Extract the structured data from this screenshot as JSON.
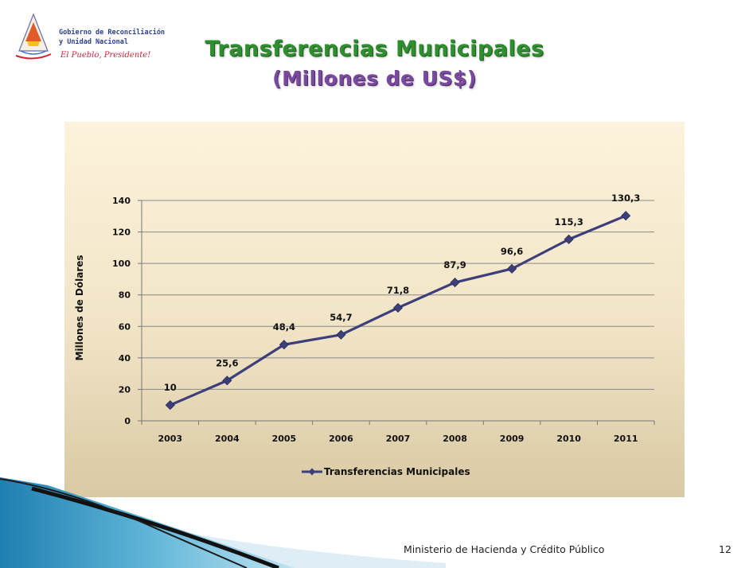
{
  "logo": {
    "line1": "Gobierno de Reconciliación",
    "line2": "y Unidad Nacional",
    "slogan": "El Pueblo, Presidente!"
  },
  "header": {
    "title": "Transferencias Municipales",
    "subtitle": "(Millones de US$)"
  },
  "chart_data": {
    "type": "line",
    "categories": [
      "2003",
      "2004",
      "2005",
      "2006",
      "2007",
      "2008",
      "2009",
      "2010",
      "2011"
    ],
    "series": [
      {
        "name": "Transferencias Municipales",
        "values": [
          10,
          25.6,
          48.4,
          54.7,
          71.8,
          87.9,
          96.6,
          115.3,
          130.3
        ],
        "labels": [
          "10",
          "25,6",
          "48,4",
          "54,7",
          "71,8",
          "87,9",
          "96,6",
          "115,3",
          "130,3"
        ],
        "color": "#3d3f7a"
      }
    ],
    "ylabel": "Millones de Dólares",
    "ylim": [
      0,
      140
    ],
    "yticks": [
      0,
      20,
      40,
      60,
      80,
      100,
      120,
      140
    ],
    "grid": true,
    "legend": "bottom"
  },
  "footer": {
    "text": "Ministerio de Hacienda y Crédito Público",
    "page": "12"
  }
}
